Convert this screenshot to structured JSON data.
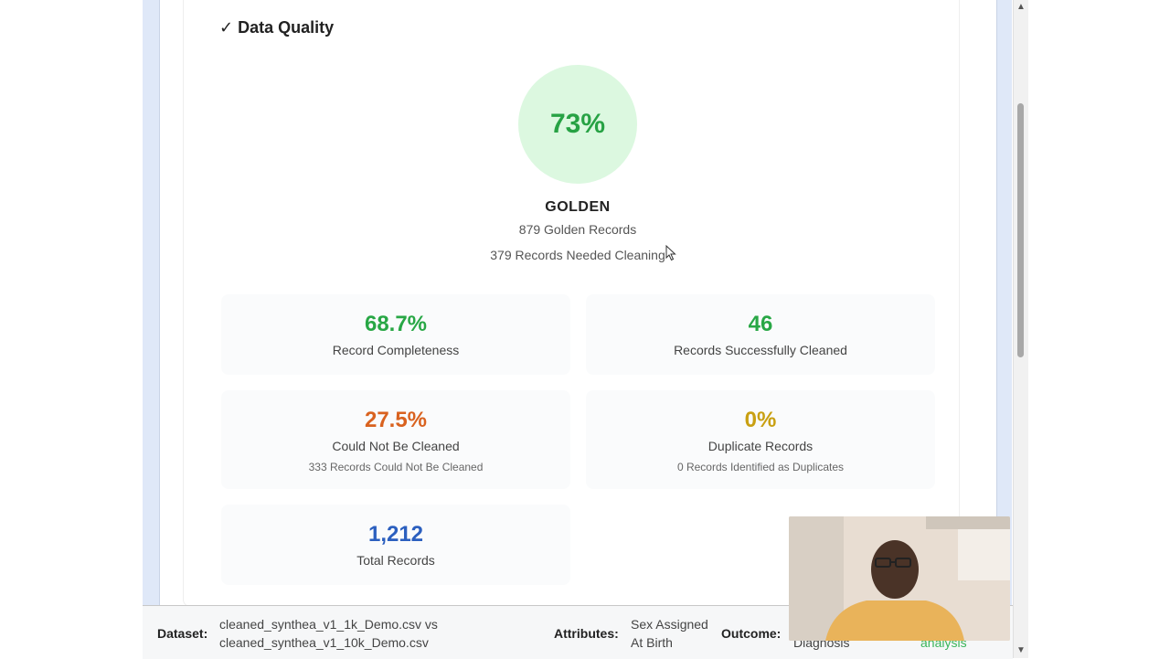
{
  "section": {
    "title": "✓ Data Quality"
  },
  "gauge": {
    "value": "73%",
    "grade": "GOLDEN",
    "golden_records": "879 Golden Records",
    "needed_cleaning": "379 Records Needed Cleaning",
    "fill_percent": 73
  },
  "metrics": [
    {
      "value": "68.7%",
      "label": "Record Completeness",
      "sub": ""
    },
    {
      "value": "46",
      "label": "Records Successfully Cleaned",
      "sub": ""
    },
    {
      "value": "27.5%",
      "label": "Could Not Be Cleaned",
      "sub": "333 Records Could Not Be Cleaned"
    },
    {
      "value": "0%",
      "label": "Duplicate Records",
      "sub": "0 Records Identified as Duplicates"
    },
    {
      "value": "1,212",
      "label": "Total Records",
      "sub": ""
    }
  ],
  "footer": {
    "dataset_label": "Dataset:",
    "dataset_line1": "cleaned_synthea_v1_1k_Demo.csv vs",
    "dataset_line2": "cleaned_synthea_v1_10k_Demo.csv",
    "attributes_label": "Attributes:",
    "attributes_line1": "Sex Assigned",
    "attributes_line2": "At Birth",
    "outcome_label": "Outcome:",
    "outcome_value": "Diagnosis",
    "analysis_text": "analysis"
  },
  "colors": {
    "green": "#28a745",
    "orange": "#d9621f",
    "gold": "#c9a012",
    "blue": "#2b5fbf",
    "gauge_bg": "#dcf8e0"
  },
  "icons": {
    "scroll_up": "triangle-up-icon",
    "scroll_down": "triangle-down-icon",
    "cursor": "mouse-pointer-icon"
  }
}
